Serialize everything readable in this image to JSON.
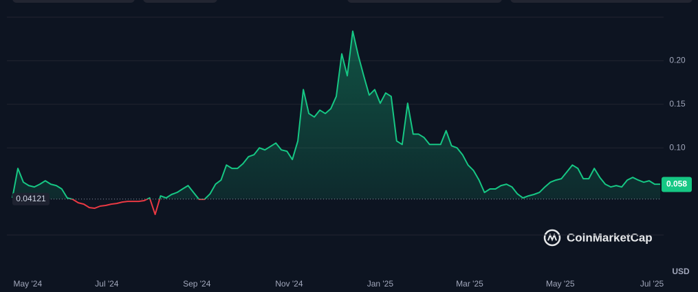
{
  "chart_data": {
    "type": "line",
    "series": [
      {
        "color": "#16c784",
        "down_color": "#ea3943",
        "values": [
          0.0425,
          0.0764,
          0.0606,
          0.0567,
          0.0551,
          0.0583,
          0.0622,
          0.0583,
          0.0567,
          0.0528,
          0.0425,
          0.0409,
          0.037,
          0.0354,
          0.0315,
          0.0307,
          0.0331,
          0.0339,
          0.0354,
          0.0362,
          0.0378,
          0.0386,
          0.0386,
          0.0386,
          0.0394,
          0.0425,
          0.0236,
          0.0449,
          0.0425,
          0.0465,
          0.0488,
          0.0528,
          0.0567,
          0.0488,
          0.0409,
          0.0409,
          0.0472,
          0.0583,
          0.063,
          0.0803,
          0.0764,
          0.0764,
          0.0819,
          0.0898,
          0.0921,
          0.1,
          0.0976,
          0.1016,
          0.1055,
          0.0976,
          0.0961,
          0.0866,
          0.1079,
          0.1669,
          0.1394,
          0.1354,
          0.1433,
          0.1394,
          0.1449,
          0.1591,
          0.2079,
          0.1827,
          0.2339,
          0.2063,
          0.1827,
          0.1606,
          0.1669,
          0.1512,
          0.163,
          0.1591,
          0.1079,
          0.1039,
          0.1512,
          0.1157,
          0.1157,
          0.1118,
          0.1039,
          0.1039,
          0.1039,
          0.1197,
          0.1024,
          0.1,
          0.0921,
          0.0803,
          0.074,
          0.063,
          0.0488,
          0.0528,
          0.0528,
          0.0567,
          0.0583,
          0.0551,
          0.0472,
          0.0425,
          0.0449,
          0.0465,
          0.0488,
          0.0551,
          0.0606,
          0.063,
          0.0646,
          0.0724,
          0.0803,
          0.0764,
          0.0646,
          0.0646,
          0.0764,
          0.0661,
          0.0583,
          0.0551,
          0.0567,
          0.0551,
          0.063,
          0.0661,
          0.063,
          0.0606,
          0.0622,
          0.0583,
          0.0583
        ]
      }
    ],
    "xlim": [
      0,
      118
    ],
    "xticks": [
      {
        "value": 2.8,
        "label": "May '24"
      },
      {
        "value": 17.2,
        "label": "Jul '24"
      },
      {
        "value": 33.6,
        "label": "Sep '24"
      },
      {
        "value": 50.4,
        "label": "Nov '24"
      },
      {
        "value": 67,
        "label": "Jan '25"
      },
      {
        "value": 83.3,
        "label": "Mar '25"
      },
      {
        "value": 99.8,
        "label": "May '25"
      },
      {
        "value": 116.5,
        "label": "Jul '25"
      }
    ],
    "ylim": [
      0,
      0.25
    ],
    "yticks": [
      {
        "value": 0.1,
        "label": "0.10"
      },
      {
        "value": 0.15,
        "label": "0.15"
      },
      {
        "value": 0.2,
        "label": "0.20"
      }
    ],
    "grid": true,
    "baseline": 0.04121,
    "last_price": 0.058,
    "currency": "USD",
    "watermark": "CoinMarketCap"
  }
}
